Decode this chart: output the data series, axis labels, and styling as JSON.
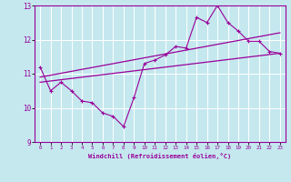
{
  "xlabel": "Windchill (Refroidissement éolien,°C)",
  "xlim": [
    -0.5,
    23.5
  ],
  "ylim": [
    9,
    13
  ],
  "yticks": [
    9,
    10,
    11,
    12,
    13
  ],
  "xticks": [
    0,
    1,
    2,
    3,
    4,
    5,
    6,
    7,
    8,
    9,
    10,
    11,
    12,
    13,
    14,
    15,
    16,
    17,
    18,
    19,
    20,
    21,
    22,
    23
  ],
  "bg_color": "#c5e8ef",
  "line_color": "#990099",
  "line1_x": [
    0,
    1,
    2,
    3,
    4,
    5,
    6,
    7,
    8,
    9,
    10,
    11,
    12,
    13,
    14,
    15,
    16,
    17,
    18,
    19,
    20,
    21,
    22,
    23
  ],
  "line1_y": [
    11.2,
    10.5,
    10.75,
    10.5,
    10.2,
    10.15,
    9.85,
    9.75,
    9.45,
    10.3,
    11.3,
    11.4,
    11.55,
    11.8,
    11.75,
    12.65,
    12.5,
    13.0,
    12.5,
    12.25,
    11.95,
    11.95,
    11.65,
    11.6
  ],
  "line2_x": [
    0,
    23
  ],
  "line2_y": [
    10.75,
    11.6
  ],
  "line3_x": [
    0,
    23
  ],
  "line3_y": [
    10.9,
    12.2
  ]
}
